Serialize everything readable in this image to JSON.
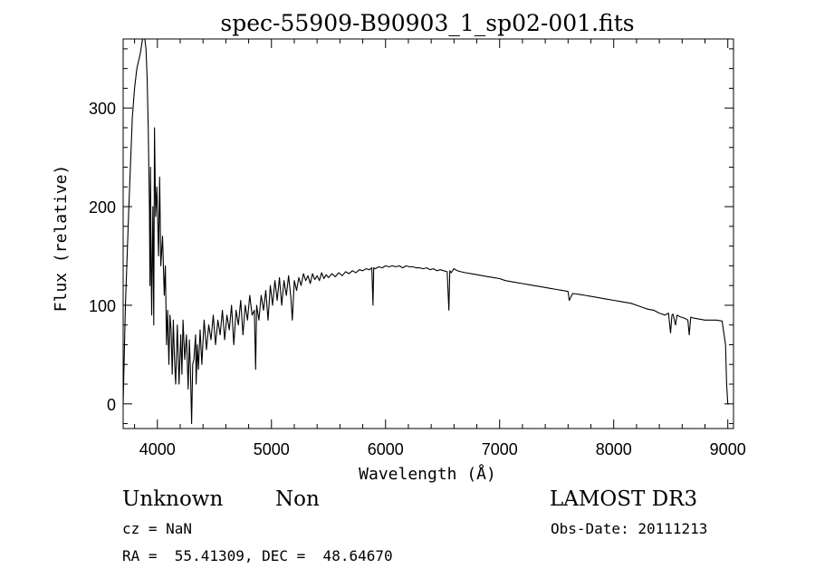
{
  "chart_data": {
    "type": "line",
    "title": "spec-55909-B90903_1_sp02-001.fits",
    "xlabel": "Wavelength (Å)",
    "ylabel": "Flux (relative)",
    "xlim": [
      3700,
      9050
    ],
    "ylim": [
      -25,
      370
    ],
    "x_ticks": [
      4000,
      5000,
      6000,
      7000,
      8000,
      9000
    ],
    "x_tick_labels": [
      "4000",
      "5000",
      "6000",
      "7000",
      "8000",
      "9000"
    ],
    "y_ticks": [
      0,
      100,
      200,
      300
    ],
    "y_tick_labels": [
      "0",
      "100",
      "200",
      "300"
    ],
    "grid": false,
    "series": [
      {
        "x": [
          3700,
          3720,
          3750,
          3780,
          3800,
          3820,
          3850,
          3870,
          3890,
          3900,
          3910,
          3920,
          3930,
          3935,
          3940,
          3945,
          3950,
          3960,
          3968,
          3975,
          3985,
          3995,
          4010,
          4020,
          4030,
          4045,
          4060,
          4070,
          4080,
          4090,
          4101,
          4110,
          4120,
          4130,
          4140,
          4150,
          4160,
          4175,
          4190,
          4205,
          4215,
          4225,
          4240,
          4255,
          4270,
          4280,
          4290,
          4300,
          4310,
          4320,
          4335,
          4340,
          4350,
          4360,
          4375,
          4390,
          4410,
          4430,
          4450,
          4470,
          4490,
          4510,
          4530,
          4550,
          4570,
          4590,
          4610,
          4630,
          4650,
          4670,
          4690,
          4710,
          4730,
          4750,
          4770,
          4790,
          4810,
          4830,
          4850,
          4861,
          4870,
          4890,
          4910,
          4930,
          4950,
          4970,
          4990,
          5010,
          5030,
          5050,
          5070,
          5090,
          5110,
          5130,
          5150,
          5170,
          5183,
          5200,
          5220,
          5240,
          5260,
          5280,
          5300,
          5320,
          5340,
          5360,
          5380,
          5400,
          5420,
          5440,
          5460,
          5480,
          5500,
          5530,
          5560,
          5590,
          5620,
          5650,
          5680,
          5710,
          5740,
          5770,
          5800,
          5830,
          5860,
          5880,
          5890,
          5896,
          5910,
          5940,
          5970,
          6000,
          6030,
          6060,
          6090,
          6120,
          6150,
          6180,
          6210,
          6240,
          6270,
          6300,
          6330,
          6360,
          6390,
          6420,
          6450,
          6480,
          6510,
          6540,
          6555,
          6563,
          6575,
          6600,
          6630,
          6660,
          6700,
          6750,
          6800,
          6850,
          6900,
          6950,
          7000,
          7050,
          7100,
          7150,
          7200,
          7250,
          7300,
          7350,
          7400,
          7450,
          7500,
          7550,
          7600,
          7610,
          7640,
          7700,
          7750,
          7800,
          7850,
          7900,
          7950,
          8000,
          8050,
          8100,
          8150,
          8200,
          8250,
          8300,
          8350,
          8400,
          8450,
          8480,
          8498,
          8510,
          8520,
          8542,
          8555,
          8570,
          8590,
          8620,
          8650,
          8662,
          8675,
          8700,
          8750,
          8800,
          8850,
          8900,
          8950,
          8980,
          8990,
          9000,
          9010
        ],
        "y": [
          0,
          100,
          200,
          290,
          320,
          340,
          355,
          370,
          370,
          360,
          330,
          280,
          200,
          120,
          240,
          140,
          90,
          200,
          80,
          280,
          190,
          220,
          150,
          230,
          140,
          170,
          110,
          140,
          60,
          95,
          40,
          90,
          75,
          30,
          85,
          45,
          20,
          80,
          20,
          70,
          30,
          85,
          45,
          70,
          15,
          65,
          35,
          -20,
          40,
          45,
          70,
          20,
          60,
          35,
          75,
          40,
          85,
          55,
          80,
          65,
          90,
          60,
          85,
          70,
          95,
          65,
          90,
          75,
          100,
          60,
          95,
          80,
          105,
          70,
          100,
          85,
          110,
          90,
          95,
          35,
          100,
          85,
          110,
          95,
          115,
          85,
          120,
          100,
          125,
          105,
          128,
          100,
          125,
          110,
          130,
          108,
          85,
          125,
          115,
          128,
          120,
          132,
          125,
          130,
          122,
          132,
          126,
          130,
          125,
          133,
          127,
          131,
          128,
          132,
          129,
          133,
          130,
          134,
          132,
          135,
          133,
          136,
          135,
          137,
          136,
          138,
          100,
          138,
          137,
          139,
          138,
          140,
          139,
          140,
          139,
          140,
          138,
          140,
          139,
          139,
          138,
          138,
          137,
          138,
          136,
          137,
          135,
          136,
          135,
          134,
          95,
          135,
          133,
          137,
          135,
          134,
          133,
          132,
          131,
          130,
          129,
          128,
          127,
          125,
          124,
          123,
          122,
          121,
          120,
          119,
          118,
          117,
          116,
          115,
          114,
          105,
          112,
          111,
          110,
          109,
          108,
          107,
          106,
          105,
          104,
          103,
          102,
          100,
          98,
          96,
          95,
          92,
          90,
          92,
          72,
          90,
          91,
          80,
          90,
          89,
          88,
          87,
          85,
          70,
          88,
          87,
          86,
          85,
          85,
          85,
          84,
          60,
          20,
          0,
          0
        ]
      }
    ]
  },
  "info": {
    "object_class": "Unknown",
    "subclass": "Non",
    "survey": "LAMOST DR3",
    "redshift": "cz = NaN",
    "obs_date": "Obs-Date: 20111213",
    "coords": "RA =  55.41309, DEC =  48.64670"
  }
}
